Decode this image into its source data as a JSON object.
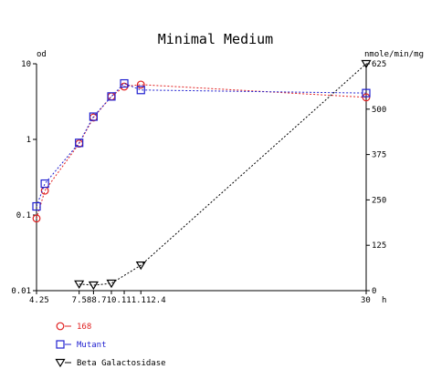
{
  "chart_data": {
    "type": "line",
    "title": "Minimal Medium",
    "x_unit_label": "h",
    "left_axis_label": "od",
    "right_axis_label": "nmole/min/mg",
    "left_axis": {
      "scale": "log",
      "range": [
        0.01,
        10
      ],
      "ticks": [
        0.01,
        0.1,
        1,
        10
      ],
      "tick_labels": [
        "0.01",
        "0.1",
        "1",
        "10"
      ]
    },
    "right_axis": {
      "scale": "linear",
      "range": [
        0,
        625
      ],
      "ticks": [
        0,
        125,
        250,
        375,
        500,
        625
      ],
      "tick_labels": [
        "0",
        "125",
        "250",
        "375",
        "500",
        "625"
      ]
    },
    "x_axis": {
      "range": [
        4.25,
        30
      ],
      "ticks": [
        4.25,
        7.58,
        8.7,
        10.1,
        11.1,
        12.4,
        30
      ],
      "tick_labels": [
        "4.25",
        "7.58",
        "8.7",
        "10.1",
        "11.1",
        "12.4",
        "30"
      ]
    },
    "grid": false,
    "legend_placement": "bottom-left",
    "series": [
      {
        "name": "168",
        "axis": "left",
        "marker": "circle",
        "color": "#e02020",
        "x": [
          4.25,
          4.9,
          7.58,
          8.7,
          10.1,
          11.1,
          12.4,
          30
        ],
        "y": [
          0.09,
          0.21,
          0.88,
          1.95,
          3.7,
          5.0,
          5.3,
          3.6
        ]
      },
      {
        "name": "Mutant",
        "axis": "left",
        "marker": "square",
        "color": "#2020d0",
        "x": [
          4.25,
          4.9,
          7.58,
          8.7,
          10.1,
          11.1,
          12.4,
          30
        ],
        "y": [
          0.13,
          0.26,
          0.9,
          2.0,
          3.7,
          5.5,
          4.5,
          4.1
        ]
      },
      {
        "name": "Beta Galactosidase",
        "axis": "right",
        "marker": "triangle-down",
        "color": "#000000",
        "x": [
          7.58,
          8.7,
          10.1,
          12.4,
          30
        ],
        "y": [
          18,
          15,
          20,
          70,
          625
        ]
      }
    ]
  }
}
